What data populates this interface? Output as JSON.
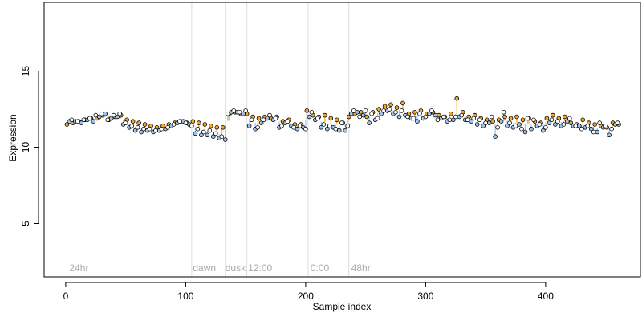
{
  "chart_data": {
    "type": "scatter",
    "xlabel": "Sample index",
    "ylabel": "Expression",
    "xlim": [
      -18,
      479
    ],
    "ylim": [
      1.5,
      19.5
    ],
    "x_ticks": [
      "0",
      "100",
      "200",
      "300",
      "400"
    ],
    "y_ticks": [
      "5",
      "10",
      "15"
    ],
    "grid": false,
    "phase_boundaries": [
      105,
      133,
      151,
      202,
      236
    ],
    "phase_labels": [
      {
        "text": "24hr",
        "x": 3
      },
      {
        "text": "dawn",
        "x": 106
      },
      {
        "text": "dusk",
        "x": 133
      },
      {
        "text": "12:00",
        "x": 152
      },
      {
        "text": "0:00",
        "x": 204
      },
      {
        "text": "48hr",
        "x": 238
      }
    ],
    "colors": {
      "series_a": "#f5a623",
      "series_b": "#9ec3ea",
      "point_stroke": "#000000",
      "separator": "#dddddd",
      "phase_text": "#aaaaaa"
    },
    "series": [
      {
        "name": "",
        "color": "#f5a623",
        "x": [
          1,
          6,
          11,
          16,
          21,
          26,
          31,
          36,
          41,
          46,
          51,
          56,
          61,
          66,
          71,
          76,
          81,
          86,
          91,
          96,
          101,
          106,
          111,
          116,
          121,
          126,
          131,
          136,
          141,
          146,
          151,
          156,
          161,
          166,
          171,
          176,
          181,
          186,
          191,
          196,
          201,
          206,
          211,
          216,
          221,
          226,
          231,
          236,
          241,
          246,
          251,
          256,
          261,
          266,
          271,
          276,
          281,
          286,
          291,
          296,
          301,
          306,
          311,
          316,
          321,
          326,
          331,
          336,
          341,
          346,
          351,
          356,
          361,
          366,
          371,
          376,
          381,
          386,
          391,
          396,
          401,
          406,
          411,
          416,
          421,
          426,
          431,
          436,
          441,
          446,
          451,
          456,
          461
        ],
        "y": [
          11.5,
          11.6,
          11.7,
          11.8,
          11.9,
          11.9,
          12.1,
          11.8,
          12.0,
          12.1,
          11.8,
          11.7,
          11.6,
          11.5,
          11.4,
          11.3,
          11.4,
          11.5,
          11.6,
          11.7,
          11.6,
          11.7,
          11.6,
          11.5,
          11.4,
          11.3,
          11.3,
          12.2,
          12.3,
          12.2,
          12.2,
          12.0,
          11.9,
          12.0,
          11.9,
          12.0,
          11.7,
          11.8,
          11.5,
          11.5,
          12.4,
          12.1,
          12.0,
          12.1,
          11.9,
          11.8,
          11.6,
          12.0,
          12.2,
          12.3,
          12.0,
          12.3,
          12.5,
          12.7,
          12.8,
          12.6,
          12.9,
          12.2,
          12.3,
          12.4,
          12.2,
          12.3,
          12.1,
          12.0,
          12.2,
          13.2,
          12.3,
          12.0,
          12.1,
          11.9,
          11.8,
          11.7,
          11.8,
          12.0,
          11.9,
          12.0,
          11.8,
          11.9,
          11.7,
          11.6,
          11.9,
          12.1,
          11.9,
          12.0,
          11.6,
          11.5,
          11.8,
          11.6,
          11.5,
          11.4,
          11.3,
          11.6,
          11.5
        ]
      },
      {
        "name": "",
        "color": "#9ec3ea",
        "x": [
          3,
          8,
          13,
          18,
          23,
          28,
          33,
          38,
          43,
          48,
          53,
          58,
          63,
          68,
          73,
          78,
          83,
          88,
          93,
          98,
          103,
          108,
          113,
          118,
          123,
          128,
          133,
          138,
          143,
          148,
          153,
          158,
          163,
          168,
          173,
          178,
          183,
          188,
          193,
          198,
          203,
          208,
          213,
          218,
          223,
          228,
          233,
          238,
          243,
          248,
          253,
          258,
          263,
          268,
          273,
          278,
          283,
          288,
          293,
          298,
          303,
          308,
          313,
          318,
          323,
          328,
          333,
          338,
          343,
          348,
          353,
          358,
          363,
          368,
          373,
          378,
          383,
          388,
          393,
          398,
          403,
          408,
          413,
          418,
          423,
          428,
          433,
          438,
          443,
          448,
          453,
          458
        ],
        "y": [
          11.7,
          11.7,
          11.6,
          11.8,
          11.7,
          12.0,
          12.2,
          11.9,
          12.0,
          11.5,
          11.3,
          11.1,
          11.0,
          11.1,
          11.0,
          11.1,
          11.2,
          11.4,
          11.6,
          11.7,
          11.5,
          10.9,
          10.8,
          10.8,
          10.7,
          10.6,
          10.5,
          12.3,
          12.3,
          12.2,
          11.4,
          11.2,
          11.6,
          11.9,
          11.8,
          11.3,
          11.6,
          11.4,
          11.2,
          11.3,
          12.0,
          11.8,
          11.3,
          11.2,
          11.3,
          11.1,
          11.1,
          12.2,
          12.3,
          12.1,
          11.6,
          11.8,
          12.2,
          12.4,
          12.2,
          12.0,
          12.1,
          11.9,
          11.7,
          11.9,
          12.2,
          12.1,
          11.9,
          11.7,
          11.8,
          12.0,
          11.8,
          11.7,
          11.5,
          11.4,
          11.6,
          10.7,
          11.7,
          11.4,
          11.3,
          11.5,
          11.0,
          11.2,
          11.4,
          11.1,
          11.6,
          11.5,
          11.4,
          11.7,
          11.4,
          11.4,
          11.3,
          11.2,
          11.0,
          11.3,
          10.8,
          11.5
        ]
      },
      {
        "name": "",
        "color": "#ffffff",
        "x": [
          5,
          10,
          15,
          20,
          25,
          30,
          35,
          40,
          45,
          50,
          55,
          60,
          65,
          70,
          75,
          80,
          85,
          90,
          95,
          100,
          105,
          110,
          115,
          120,
          125,
          130,
          135,
          140,
          145,
          150,
          155,
          160,
          165,
          170,
          175,
          180,
          185,
          190,
          195,
          200,
          205,
          210,
          215,
          220,
          225,
          230,
          235,
          240,
          245,
          250,
          255,
          260,
          265,
          270,
          275,
          280,
          285,
          290,
          295,
          300,
          305,
          310,
          315,
          320,
          325,
          330,
          335,
          340,
          345,
          350,
          355,
          360,
          365,
          370,
          375,
          380,
          385,
          390,
          395,
          400,
          405,
          410,
          415,
          420,
          425,
          430,
          435,
          440,
          445,
          450,
          455,
          460
        ],
        "y": [
          11.8,
          11.7,
          11.8,
          11.9,
          12.1,
          12.2,
          11.8,
          12.1,
          12.2,
          11.6,
          11.4,
          11.3,
          11.2,
          11.2,
          11.1,
          11.2,
          11.3,
          11.5,
          11.7,
          11.6,
          11.4,
          11.2,
          11.0,
          11.1,
          10.9,
          10.7,
          12.2,
          12.4,
          12.3,
          12.4,
          11.8,
          11.3,
          11.8,
          12.1,
          11.9,
          11.4,
          11.7,
          11.3,
          11.4,
          11.2,
          12.3,
          11.9,
          11.5,
          11.4,
          11.2,
          11.6,
          11.4,
          12.4,
          12.0,
          12.4,
          12.2,
          11.9,
          12.4,
          12.5,
          12.3,
          12.4,
          12.0,
          11.9,
          12.2,
          12.0,
          12.4,
          11.8,
          12.0,
          11.8,
          12.0,
          12.1,
          11.8,
          11.9,
          11.8,
          11.6,
          12.0,
          11.3,
          12.3,
          11.6,
          11.4,
          11.2,
          11.9,
          11.8,
          11.5,
          11.3,
          11.8,
          11.7,
          11.5,
          11.9,
          11.4,
          11.2,
          11.4,
          11.0,
          11.6,
          11.4,
          11.2,
          11.6
        ]
      }
    ]
  }
}
